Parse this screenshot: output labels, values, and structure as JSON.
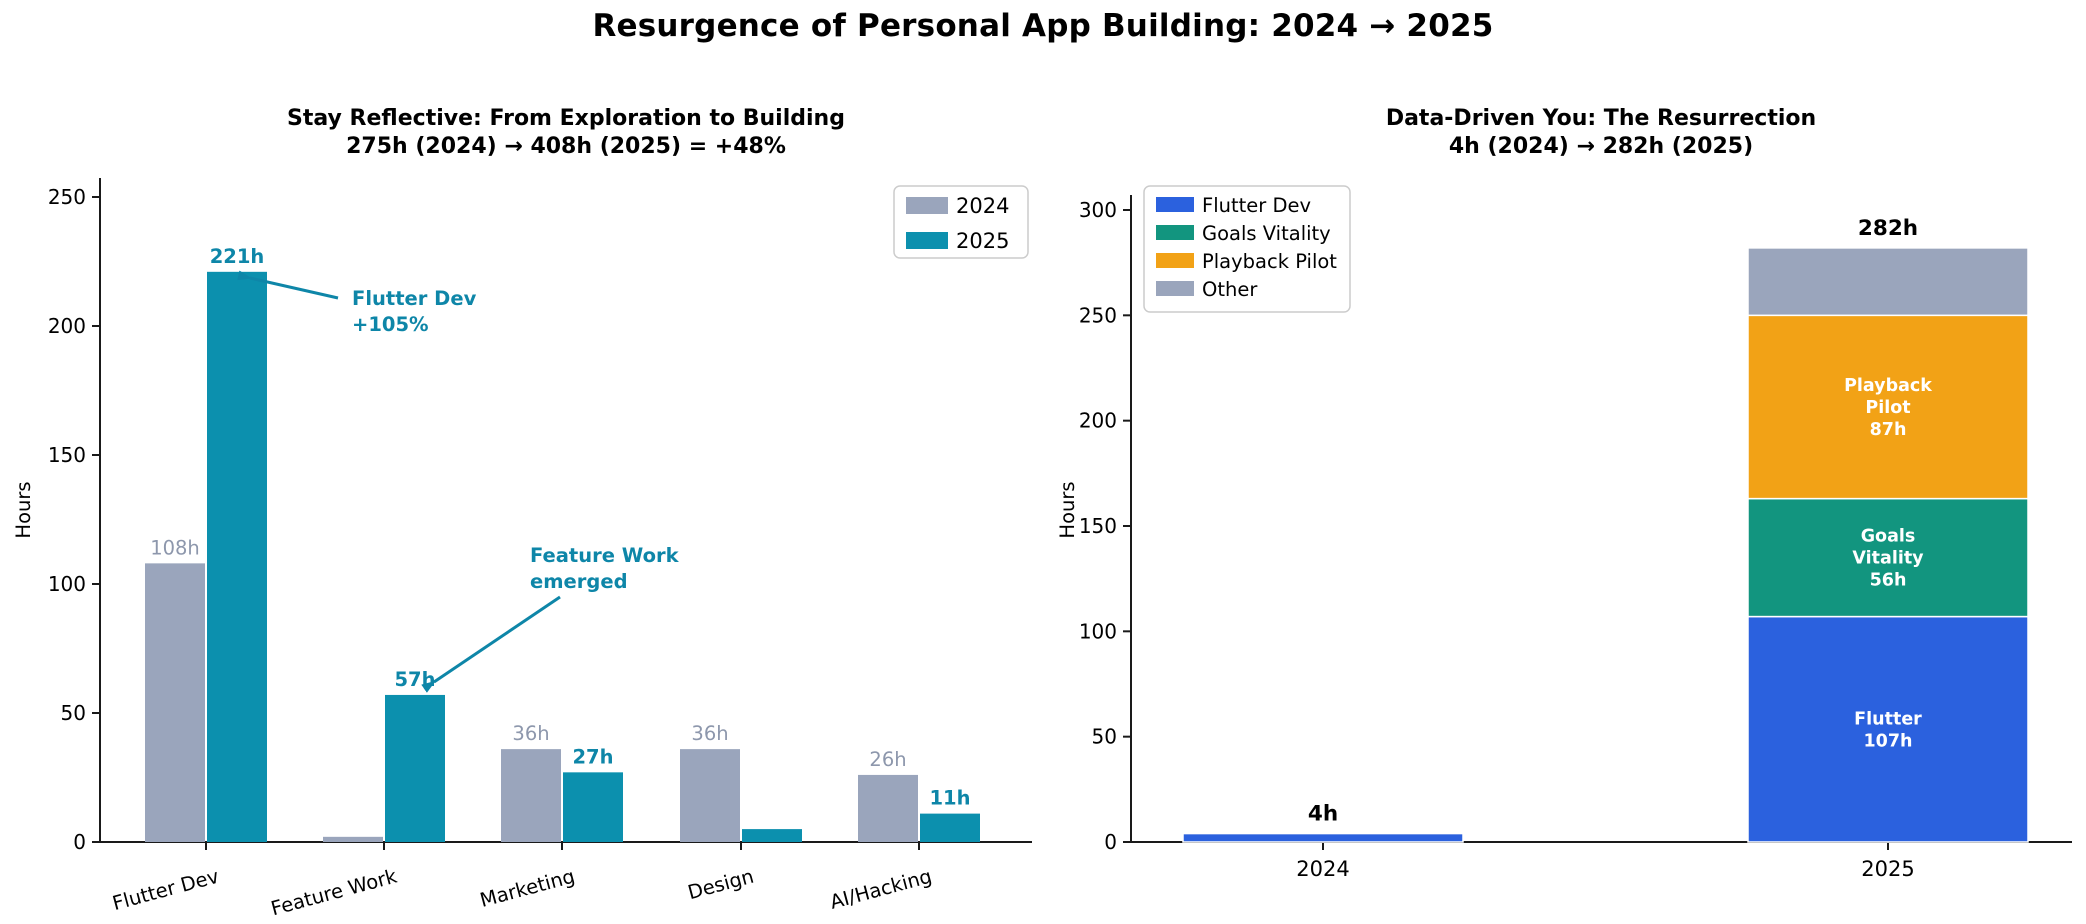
{
  "main_title": "Resurgence of Personal App Building: 2024 → 2025",
  "colors": {
    "bar_2024_gray": "#9aa5bc",
    "bar_2025_teal": "#0c90ae",
    "annotation_teal": "#0e86a8",
    "flutter_blue": "#2b61de",
    "goals_green": "#12957f",
    "playback_orange": "#f2a216",
    "other_gray": "#9aa5bc",
    "gray_value_label": "#8d97ac",
    "axis": "#1a1a1a",
    "segment_text": "#ffffff",
    "total_text": "#000000",
    "legend_border": "#cccccc"
  },
  "chart_data": [
    {
      "type": "bar",
      "title": "Stay Reflective: From Exploration to Building",
      "subtitle": "275h (2024) → 408h (2025) = +48%",
      "ylabel": "Hours",
      "ylim": [
        0,
        258
      ],
      "yticks": [
        0,
        50,
        100,
        150,
        200,
        250
      ],
      "grid": false,
      "legend_position": "upper right",
      "categories": [
        "Flutter Dev",
        "Feature Work",
        "Marketing",
        "Design",
        "AI/Hacking"
      ],
      "series": [
        {
          "name": "2024",
          "color": "bar_2024_gray",
          "values": [
            108,
            2,
            36,
            36,
            26
          ],
          "bar_labels": [
            "108h",
            "",
            "36h",
            "36h",
            "26h"
          ]
        },
        {
          "name": "2025",
          "color": "bar_2025_teal",
          "values": [
            221,
            57,
            27,
            5,
            11
          ],
          "bar_labels": [
            "221h",
            "57h",
            "27h",
            "",
            "11h"
          ]
        }
      ],
      "annotations": [
        {
          "lines": [
            "Flutter Dev",
            "+105%"
          ]
        },
        {
          "lines": [
            "Feature Work",
            "emerged"
          ]
        }
      ]
    },
    {
      "type": "stacked_bar",
      "title": "Data-Driven You: The Resurrection",
      "subtitle": "4h (2024) → 282h (2025)",
      "ylabel": "Hours",
      "ylim": [
        0,
        307
      ],
      "yticks": [
        0,
        50,
        100,
        150,
        200,
        250,
        300
      ],
      "grid": false,
      "legend_position": "upper left",
      "categories": [
        "2024",
        "2025"
      ],
      "series": [
        {
          "name": "Flutter Dev",
          "color": "flutter_blue",
          "values": [
            4,
            107
          ]
        },
        {
          "name": "Goals Vitality",
          "color": "goals_green",
          "values": [
            0,
            56
          ]
        },
        {
          "name": "Playback Pilot",
          "color": "playback_orange",
          "values": [
            0,
            87
          ]
        },
        {
          "name": "Other",
          "color": "other_gray",
          "values": [
            0,
            32
          ]
        }
      ],
      "totals": [
        "4h",
        "282h"
      ],
      "segment_labels": [
        {
          "category_index": 1,
          "series": "Flutter Dev",
          "lines": [
            "Flutter",
            "107h"
          ]
        },
        {
          "category_index": 1,
          "series": "Goals Vitality",
          "lines": [
            "Goals",
            "Vitality",
            "56h"
          ]
        },
        {
          "category_index": 1,
          "series": "Playback Pilot",
          "lines": [
            "Playback",
            "Pilot",
            "87h"
          ]
        }
      ]
    }
  ]
}
